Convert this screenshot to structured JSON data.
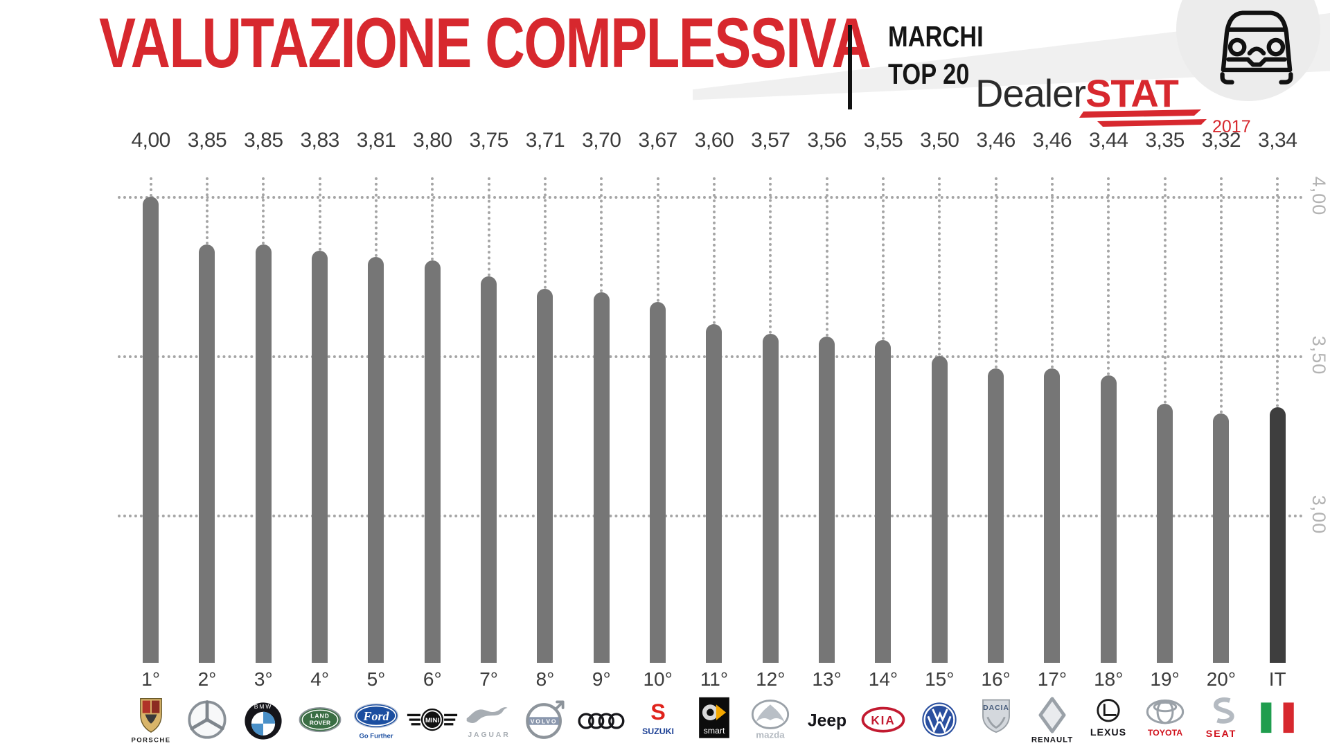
{
  "header": {
    "title": "VALUTAZIONE COMPLESSIVA",
    "title_color": "#d7282e",
    "badge_line1": "MARCHI",
    "badge_line2": "TOP 20",
    "brand_logo": {
      "part1": "Dealer",
      "part2": "STAT",
      "year": "2017",
      "accent": "#d7282e"
    }
  },
  "chart_data": {
    "type": "bar",
    "title": "VALUTAZIONE COMPLESSIVA",
    "subtitle": "MARCHI TOP 20",
    "categories": [
      "1°",
      "2°",
      "3°",
      "4°",
      "5°",
      "6°",
      "7°",
      "8°",
      "9°",
      "10°",
      "11°",
      "12°",
      "13°",
      "14°",
      "15°",
      "16°",
      "17°",
      "18°",
      "19°",
      "20°",
      "IT"
    ],
    "values": [
      4.0,
      3.85,
      3.85,
      3.83,
      3.81,
      3.8,
      3.75,
      3.71,
      3.7,
      3.67,
      3.6,
      3.57,
      3.56,
      3.55,
      3.5,
      3.46,
      3.46,
      3.44,
      3.35,
      3.32,
      3.34
    ],
    "value_labels": [
      "4,00",
      "3,85",
      "3,85",
      "3,83",
      "3,81",
      "3,80",
      "3,75",
      "3,71",
      "3,70",
      "3,67",
      "3,60",
      "3,57",
      "3,56",
      "3,55",
      "3,50",
      "3,46",
      "3,46",
      "3,44",
      "3,35",
      "3,32",
      "3,34"
    ],
    "brands": [
      {
        "key": "porsche",
        "name": "Porsche"
      },
      {
        "key": "mercedes",
        "name": "Mercedes-Benz"
      },
      {
        "key": "bmw",
        "name": "BMW"
      },
      {
        "key": "landrover",
        "name": "Land Rover"
      },
      {
        "key": "ford",
        "name": "Ford"
      },
      {
        "key": "mini",
        "name": "MINI"
      },
      {
        "key": "jaguar",
        "name": "Jaguar"
      },
      {
        "key": "volvo",
        "name": "Volvo"
      },
      {
        "key": "audi",
        "name": "Audi"
      },
      {
        "key": "suzuki",
        "name": "Suzuki"
      },
      {
        "key": "smart",
        "name": "smart"
      },
      {
        "key": "mazda",
        "name": "Mazda"
      },
      {
        "key": "jeep",
        "name": "Jeep"
      },
      {
        "key": "kia",
        "name": "KIA"
      },
      {
        "key": "vw",
        "name": "Volkswagen"
      },
      {
        "key": "dacia",
        "name": "Dacia"
      },
      {
        "key": "renault",
        "name": "Renault"
      },
      {
        "key": "lexus",
        "name": "Lexus"
      },
      {
        "key": "toyota",
        "name": "Toyota"
      },
      {
        "key": "seat",
        "name": "SEAT"
      },
      {
        "key": "italia",
        "name": "Italia"
      }
    ],
    "yticks": [
      {
        "label": "4,00",
        "value": 4.0
      },
      {
        "label": "3,50",
        "value": 3.5
      },
      {
        "label": "3,00",
        "value": 3.0
      }
    ],
    "ylim": [
      2.537,
      4.0
    ],
    "grid": "dotted-horizontal",
    "legend": "none",
    "bar_color": "#767676",
    "highlight_bar_color": "#3e3e3e",
    "highlight_category": "IT",
    "guide_line_color": "#a5a5a5"
  }
}
